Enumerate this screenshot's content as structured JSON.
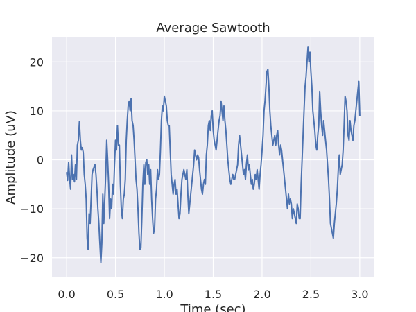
{
  "chart_data": {
    "type": "line",
    "title": "Average Sawtooth",
    "xlabel": "Time (sec)",
    "ylabel": "Amplitude (uV)",
    "xlim": [
      -0.15,
      3.15
    ],
    "ylim": [
      -24,
      25
    ],
    "xticks": [
      0.0,
      0.5,
      1.0,
      1.5,
      2.0,
      2.5,
      3.0
    ],
    "xtick_labels": [
      "0.0",
      "0.5",
      "1.0",
      "1.5",
      "2.0",
      "2.5",
      "3.0"
    ],
    "yticks": [
      -20,
      -10,
      0,
      10,
      20
    ],
    "ytick_labels": [
      "−20",
      "−10",
      "0",
      "10",
      "20"
    ],
    "grid": true,
    "colors": {
      "plot_background": "#eaeaf2",
      "grid": "#ffffff",
      "line": "#4c72b0"
    },
    "series": [
      {
        "points": [
          [
            0.0,
            -2.5
          ],
          [
            0.01,
            -4.2
          ],
          [
            0.02,
            -0.5
          ],
          [
            0.03,
            -3.8
          ],
          [
            0.04,
            -6
          ],
          [
            0.05,
            1
          ],
          [
            0.06,
            -4
          ],
          [
            0.07,
            -3
          ],
          [
            0.08,
            -4.5
          ],
          [
            0.09,
            -1
          ],
          [
            0.1,
            -4
          ],
          [
            0.11,
            3
          ],
          [
            0.12,
            4
          ],
          [
            0.13,
            7.8
          ],
          [
            0.14,
            4
          ],
          [
            0.15,
            2
          ],
          [
            0.16,
            2.5
          ],
          [
            0.17,
            1.5
          ],
          [
            0.18,
            -3
          ],
          [
            0.19,
            -5
          ],
          [
            0.2,
            -8
          ],
          [
            0.21,
            -16
          ],
          [
            0.22,
            -18.3
          ],
          [
            0.23,
            -11
          ],
          [
            0.24,
            -13
          ],
          [
            0.25,
            -8
          ],
          [
            0.26,
            -3
          ],
          [
            0.27,
            -2
          ],
          [
            0.28,
            -1.5
          ],
          [
            0.29,
            -1
          ],
          [
            0.3,
            -3
          ],
          [
            0.31,
            -6
          ],
          [
            0.32,
            -10
          ],
          [
            0.33,
            -13
          ],
          [
            0.34,
            -17
          ],
          [
            0.35,
            -21
          ],
          [
            0.36,
            -17
          ],
          [
            0.37,
            -7
          ],
          [
            0.38,
            -13
          ],
          [
            0.39,
            -8
          ],
          [
            0.4,
            -3
          ],
          [
            0.41,
            4
          ],
          [
            0.42,
            0
          ],
          [
            0.43,
            -5
          ],
          [
            0.44,
            -12
          ],
          [
            0.45,
            -8
          ],
          [
            0.46,
            -10
          ],
          [
            0.47,
            -5
          ],
          [
            0.48,
            -7
          ],
          [
            0.49,
            -1
          ],
          [
            0.5,
            4
          ],
          [
            0.51,
            2
          ],
          [
            0.52,
            7
          ],
          [
            0.53,
            3
          ],
          [
            0.54,
            3
          ],
          [
            0.55,
            -5
          ],
          [
            0.56,
            -10
          ],
          [
            0.57,
            -12
          ],
          [
            0.58,
            -8
          ],
          [
            0.59,
            -7
          ],
          [
            0.6,
            -4
          ],
          [
            0.61,
            4
          ],
          [
            0.62,
            8
          ],
          [
            0.63,
            11
          ],
          [
            0.64,
            12
          ],
          [
            0.65,
            10
          ],
          [
            0.66,
            12.5
          ],
          [
            0.67,
            8
          ],
          [
            0.68,
            7
          ],
          [
            0.69,
            4
          ],
          [
            0.7,
            0
          ],
          [
            0.71,
            -4
          ],
          [
            0.72,
            -6
          ],
          [
            0.73,
            -10
          ],
          [
            0.74,
            -15
          ],
          [
            0.75,
            -18.3
          ],
          [
            0.76,
            -18
          ],
          [
            0.77,
            -12
          ],
          [
            0.78,
            -5
          ],
          [
            0.79,
            -1
          ],
          [
            0.8,
            -5
          ],
          [
            0.81,
            -0.5
          ],
          [
            0.82,
            0
          ],
          [
            0.83,
            -3
          ],
          [
            0.84,
            -1
          ],
          [
            0.85,
            -5
          ],
          [
            0.86,
            -2
          ],
          [
            0.87,
            -8
          ],
          [
            0.88,
            -12
          ],
          [
            0.89,
            -15
          ],
          [
            0.9,
            -14
          ],
          [
            0.91,
            -8
          ],
          [
            0.92,
            -6
          ],
          [
            0.93,
            -2
          ],
          [
            0.94,
            -4
          ],
          [
            0.95,
            -3
          ],
          [
            0.96,
            2
          ],
          [
            0.97,
            8
          ],
          [
            0.98,
            11
          ],
          [
            0.99,
            10
          ],
          [
            1.0,
            13
          ],
          [
            1.01,
            12
          ],
          [
            1.02,
            11
          ],
          [
            1.03,
            8
          ],
          [
            1.04,
            7
          ],
          [
            1.05,
            7
          ],
          [
            1.06,
            2
          ],
          [
            1.07,
            -3
          ],
          [
            1.08,
            -5
          ],
          [
            1.09,
            -7
          ],
          [
            1.1,
            -5
          ],
          [
            1.11,
            -4
          ],
          [
            1.12,
            -7
          ],
          [
            1.13,
            -6
          ],
          [
            1.14,
            -9
          ],
          [
            1.15,
            -12
          ],
          [
            1.16,
            -11
          ],
          [
            1.17,
            -7
          ],
          [
            1.18,
            -4
          ],
          [
            1.19,
            -3
          ],
          [
            1.2,
            -2
          ],
          [
            1.21,
            -3
          ],
          [
            1.22,
            -4
          ],
          [
            1.23,
            -2
          ],
          [
            1.24,
            -7
          ],
          [
            1.25,
            -11
          ],
          [
            1.26,
            -9
          ],
          [
            1.27,
            -7
          ],
          [
            1.28,
            -5
          ],
          [
            1.29,
            -3
          ],
          [
            1.3,
            -1
          ],
          [
            1.31,
            2
          ],
          [
            1.32,
            1
          ],
          [
            1.33,
            0
          ],
          [
            1.34,
            1
          ],
          [
            1.35,
            0.5
          ],
          [
            1.36,
            -2
          ],
          [
            1.37,
            -4
          ],
          [
            1.38,
            -6
          ],
          [
            1.39,
            -7
          ],
          [
            1.4,
            -5
          ],
          [
            1.41,
            -4
          ],
          [
            1.42,
            -5
          ],
          [
            1.43,
            1
          ],
          [
            1.44,
            3
          ],
          [
            1.45,
            7
          ],
          [
            1.46,
            8
          ],
          [
            1.47,
            6
          ],
          [
            1.48,
            9
          ],
          [
            1.49,
            10
          ],
          [
            1.5,
            6
          ],
          [
            1.51,
            4
          ],
          [
            1.52,
            3
          ],
          [
            1.53,
            2
          ],
          [
            1.54,
            4
          ],
          [
            1.55,
            6
          ],
          [
            1.56,
            8
          ],
          [
            1.57,
            9
          ],
          [
            1.58,
            12
          ],
          [
            1.59,
            10
          ],
          [
            1.6,
            8
          ],
          [
            1.61,
            11
          ],
          [
            1.62,
            8
          ],
          [
            1.63,
            6
          ],
          [
            1.64,
            3
          ],
          [
            1.65,
            0
          ],
          [
            1.66,
            -2
          ],
          [
            1.67,
            -4
          ],
          [
            1.68,
            -5
          ],
          [
            1.69,
            -4
          ],
          [
            1.7,
            -3
          ],
          [
            1.71,
            -4
          ],
          [
            1.72,
            -4
          ],
          [
            1.73,
            -3
          ],
          [
            1.74,
            -2
          ],
          [
            1.75,
            -1
          ],
          [
            1.76,
            3
          ],
          [
            1.77,
            5
          ],
          [
            1.78,
            3
          ],
          [
            1.79,
            1
          ],
          [
            1.8,
            -1
          ],
          [
            1.81,
            -3
          ],
          [
            1.82,
            -2
          ],
          [
            1.83,
            -4
          ],
          [
            1.84,
            -1
          ],
          [
            1.85,
            1
          ],
          [
            1.86,
            -2
          ],
          [
            1.87,
            -1
          ],
          [
            1.88,
            -3
          ],
          [
            1.89,
            -5
          ],
          [
            1.9,
            -4
          ],
          [
            1.91,
            -6
          ],
          [
            1.92,
            -5
          ],
          [
            1.93,
            -3
          ],
          [
            1.94,
            -4
          ],
          [
            1.95,
            -2
          ],
          [
            1.96,
            -4
          ],
          [
            1.97,
            -6
          ],
          [
            1.98,
            -3
          ],
          [
            1.99,
            -1
          ],
          [
            2.0,
            2
          ],
          [
            2.01,
            5
          ],
          [
            2.02,
            10
          ],
          [
            2.03,
            12
          ],
          [
            2.04,
            15
          ],
          [
            2.05,
            18
          ],
          [
            2.06,
            18.5
          ],
          [
            2.07,
            15
          ],
          [
            2.08,
            10
          ],
          [
            2.09,
            7
          ],
          [
            2.1,
            5
          ],
          [
            2.11,
            3
          ],
          [
            2.12,
            4
          ],
          [
            2.13,
            5
          ],
          [
            2.14,
            3
          ],
          [
            2.15,
            5
          ],
          [
            2.16,
            6
          ],
          [
            2.17,
            3
          ],
          [
            2.18,
            1
          ],
          [
            2.19,
            3
          ],
          [
            2.2,
            2
          ],
          [
            2.21,
            0
          ],
          [
            2.22,
            -2
          ],
          [
            2.23,
            -4
          ],
          [
            2.24,
            -6
          ],
          [
            2.25,
            -8
          ],
          [
            2.26,
            -10
          ],
          [
            2.27,
            -7
          ],
          [
            2.28,
            -9
          ],
          [
            2.29,
            -8
          ],
          [
            2.3,
            -9
          ],
          [
            2.31,
            -12
          ],
          [
            2.32,
            -10
          ],
          [
            2.33,
            -11
          ],
          [
            2.34,
            -12
          ],
          [
            2.35,
            -13
          ],
          [
            2.36,
            -9
          ],
          [
            2.37,
            -10
          ],
          [
            2.38,
            -12
          ],
          [
            2.39,
            -12
          ],
          [
            2.4,
            -5
          ],
          [
            2.41,
            0
          ],
          [
            2.42,
            5
          ],
          [
            2.43,
            10
          ],
          [
            2.44,
            15
          ],
          [
            2.45,
            17
          ],
          [
            2.46,
            20
          ],
          [
            2.47,
            23
          ],
          [
            2.48,
            20
          ],
          [
            2.49,
            22
          ],
          [
            2.5,
            18
          ],
          [
            2.51,
            15
          ],
          [
            2.52,
            10
          ],
          [
            2.53,
            8
          ],
          [
            2.54,
            6
          ],
          [
            2.55,
            3
          ],
          [
            2.56,
            2
          ],
          [
            2.57,
            5
          ],
          [
            2.58,
            7
          ],
          [
            2.59,
            14
          ],
          [
            2.6,
            10
          ],
          [
            2.61,
            7
          ],
          [
            2.62,
            5
          ],
          [
            2.63,
            8
          ],
          [
            2.64,
            6
          ],
          [
            2.65,
            4
          ],
          [
            2.66,
            2
          ],
          [
            2.67,
            -1
          ],
          [
            2.68,
            -4
          ],
          [
            2.69,
            -8
          ],
          [
            2.7,
            -13
          ],
          [
            2.71,
            -14
          ],
          [
            2.72,
            -15
          ],
          [
            2.73,
            -16
          ],
          [
            2.74,
            -13
          ],
          [
            2.75,
            -11
          ],
          [
            2.76,
            -9
          ],
          [
            2.77,
            -6
          ],
          [
            2.78,
            -2
          ],
          [
            2.79,
            1
          ],
          [
            2.8,
            -3
          ],
          [
            2.81,
            -2
          ],
          [
            2.82,
            -1
          ],
          [
            2.83,
            2
          ],
          [
            2.84,
            7
          ],
          [
            2.85,
            13
          ],
          [
            2.86,
            12
          ],
          [
            2.87,
            10
          ],
          [
            2.88,
            5
          ],
          [
            2.89,
            4
          ],
          [
            2.9,
            8
          ],
          [
            2.91,
            6
          ],
          [
            2.92,
            5
          ],
          [
            2.93,
            4
          ],
          [
            2.94,
            7
          ],
          [
            2.95,
            8
          ],
          [
            2.96,
            10
          ],
          [
            2.97,
            12
          ],
          [
            2.98,
            14
          ],
          [
            2.99,
            16
          ],
          [
            3.0,
            9
          ]
        ]
      }
    ]
  }
}
